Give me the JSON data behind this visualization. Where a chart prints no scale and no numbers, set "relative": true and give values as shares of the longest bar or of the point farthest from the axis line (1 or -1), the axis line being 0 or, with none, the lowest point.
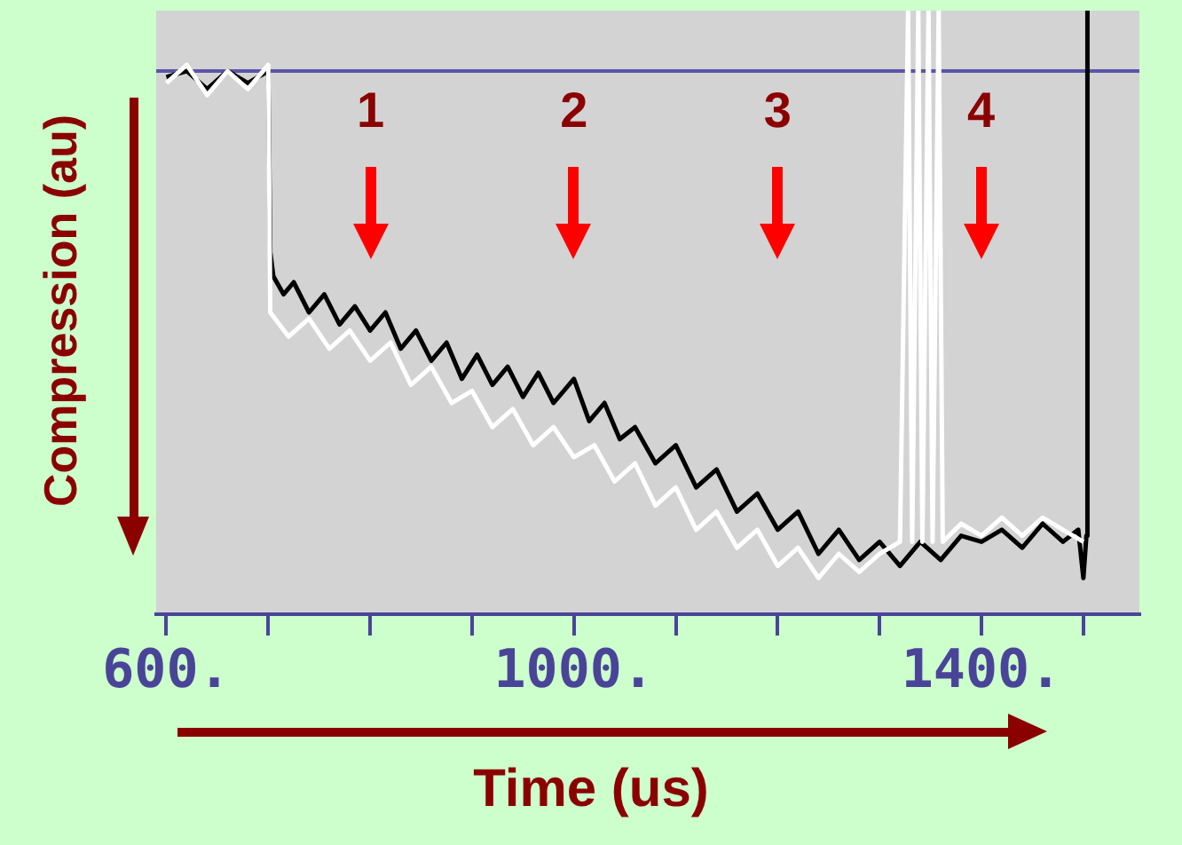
{
  "chart_data": {
    "type": "line",
    "relative": true,
    "xlabel": "Time (us)",
    "ylabel": "Compression (au)",
    "xlim": [
      590,
      1555
    ],
    "xticks": [
      {
        "value": 600,
        "label": "600."
      },
      {
        "value": 700,
        "label": null
      },
      {
        "value": 800,
        "label": null
      },
      {
        "value": 900,
        "label": null
      },
      {
        "value": 1000,
        "label": "1000."
      },
      {
        "value": 1100,
        "label": null
      },
      {
        "value": 1200,
        "label": null
      },
      {
        "value": 1300,
        "label": null
      },
      {
        "value": 1400,
        "label": "1400."
      },
      {
        "value": 1500,
        "label": null
      }
    ],
    "grid": false,
    "legend": false,
    "marker": "none",
    "line_style": "solid",
    "ref_lines": [
      {
        "axis": "y",
        "value": 0.9,
        "color": "#5b55a8"
      }
    ],
    "annotations": [
      "1",
      "2",
      "3",
      "4"
    ],
    "series": [
      {
        "color": "#ffffff",
        "x": [
          600,
          620,
          640,
          660,
          680,
          700,
          702,
          720,
          740,
          760,
          780,
          800,
          820,
          840,
          860,
          880,
          900,
          920,
          940,
          960,
          980,
          1000,
          1020,
          1040,
          1060,
          1080,
          1100,
          1120,
          1140,
          1160,
          1180,
          1200,
          1220,
          1240,
          1260,
          1280,
          1300,
          1320,
          1328,
          1332,
          1338,
          1342,
          1348,
          1352,
          1358,
          1362,
          1380,
          1400,
          1420,
          1440,
          1460,
          1480,
          1500
        ],
        "values": [
          0.88,
          0.91,
          0.86,
          0.9,
          0.87,
          0.91,
          0.5,
          0.46,
          0.49,
          0.44,
          0.47,
          0.42,
          0.45,
          0.38,
          0.41,
          0.35,
          0.37,
          0.31,
          0.34,
          0.28,
          0.31,
          0.26,
          0.28,
          0.22,
          0.25,
          0.18,
          0.21,
          0.14,
          0.17,
          0.11,
          0.14,
          0.08,
          0.11,
          0.06,
          0.1,
          0.07,
          0.1,
          0.12,
          1,
          0.12,
          1,
          0.12,
          1,
          0.12,
          1,
          0.12,
          0.15,
          0.13,
          0.16,
          0.13,
          0.16,
          0.14,
          0.12
        ]
      },
      {
        "color": "#000000",
        "x": [
          600,
          620,
          640,
          660,
          680,
          700,
          702,
          705,
          715,
          725,
          740,
          755,
          770,
          785,
          800,
          815,
          830,
          845,
          860,
          875,
          890,
          905,
          920,
          935,
          950,
          965,
          980,
          1000,
          1015,
          1030,
          1045,
          1060,
          1080,
          1100,
          1120,
          1140,
          1160,
          1180,
          1200,
          1220,
          1240,
          1260,
          1280,
          1300,
          1320,
          1340,
          1360,
          1380,
          1400,
          1420,
          1440,
          1460,
          1480,
          1495,
          1500,
          1503,
          1504
        ],
        "values": [
          0.89,
          0.9,
          0.87,
          0.9,
          0.88,
          0.9,
          0.6,
          0.56,
          0.53,
          0.55,
          0.5,
          0.53,
          0.48,
          0.51,
          0.47,
          0.5,
          0.44,
          0.47,
          0.42,
          0.45,
          0.39,
          0.43,
          0.38,
          0.41,
          0.36,
          0.4,
          0.35,
          0.39,
          0.32,
          0.35,
          0.29,
          0.31,
          0.25,
          0.28,
          0.21,
          0.24,
          0.17,
          0.2,
          0.14,
          0.17,
          0.1,
          0.14,
          0.09,
          0.12,
          0.08,
          0.12,
          0.09,
          0.13,
          0.12,
          0.14,
          0.11,
          0.15,
          0.12,
          0.14,
          0.06,
          0.13,
          1
        ]
      }
    ]
  }
}
